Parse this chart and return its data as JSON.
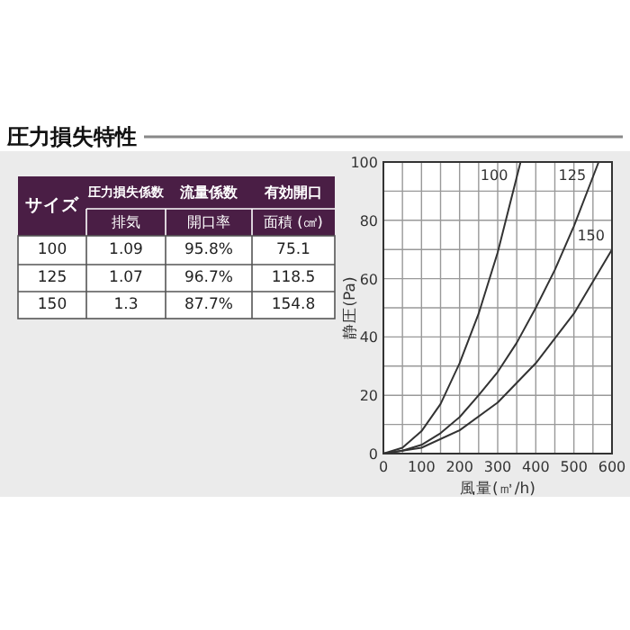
{
  "chart_data": [
    {
      "type": "other",
      "title": "圧力損失特性",
      "annotations": [
        "サイズ",
        "圧力損失係数",
        "流量係数",
        "有効開口",
        "排気",
        "開口率",
        "面積 (㎠)",
        "100",
        "1.09",
        "95.8%",
        "75.1",
        "125",
        "1.07",
        "96.7%",
        "118.5",
        "150",
        "1.3",
        "87.7%",
        "154.8"
      ]
    },
    {
      "type": "line",
      "xlabel": "風量(㎥/h)",
      "ylabel": "静圧(Pa)",
      "xlim": [
        0,
        600
      ],
      "ylim": [
        0,
        100
      ],
      "xticks": [
        0,
        100,
        200,
        300,
        400,
        500,
        600
      ],
      "yticks": [
        0,
        20,
        40,
        60,
        80,
        100
      ],
      "grid": true,
      "marker": "none",
      "line_style": "solid",
      "series": [
        {
          "name": "100",
          "color": "#333333",
          "x": [
            0,
            50,
            100,
            150,
            200,
            250,
            300,
            360
          ],
          "values": [
            0,
            2,
            7.7,
            17,
            31,
            48,
            69,
            100
          ]
        },
        {
          "name": "125",
          "color": "#333333",
          "x": [
            0,
            50,
            100,
            150,
            200,
            250,
            300,
            350,
            400,
            450,
            500,
            565
          ],
          "values": [
            0,
            1,
            3,
            7,
            12.5,
            20,
            28,
            38,
            50,
            63,
            78,
            100
          ]
        },
        {
          "name": "150",
          "color": "#333333",
          "x": [
            0,
            100,
            200,
            300,
            400,
            500,
            600
          ],
          "values": [
            0,
            2,
            8,
            17.5,
            31,
            48,
            70
          ]
        }
      ]
    }
  ]
}
